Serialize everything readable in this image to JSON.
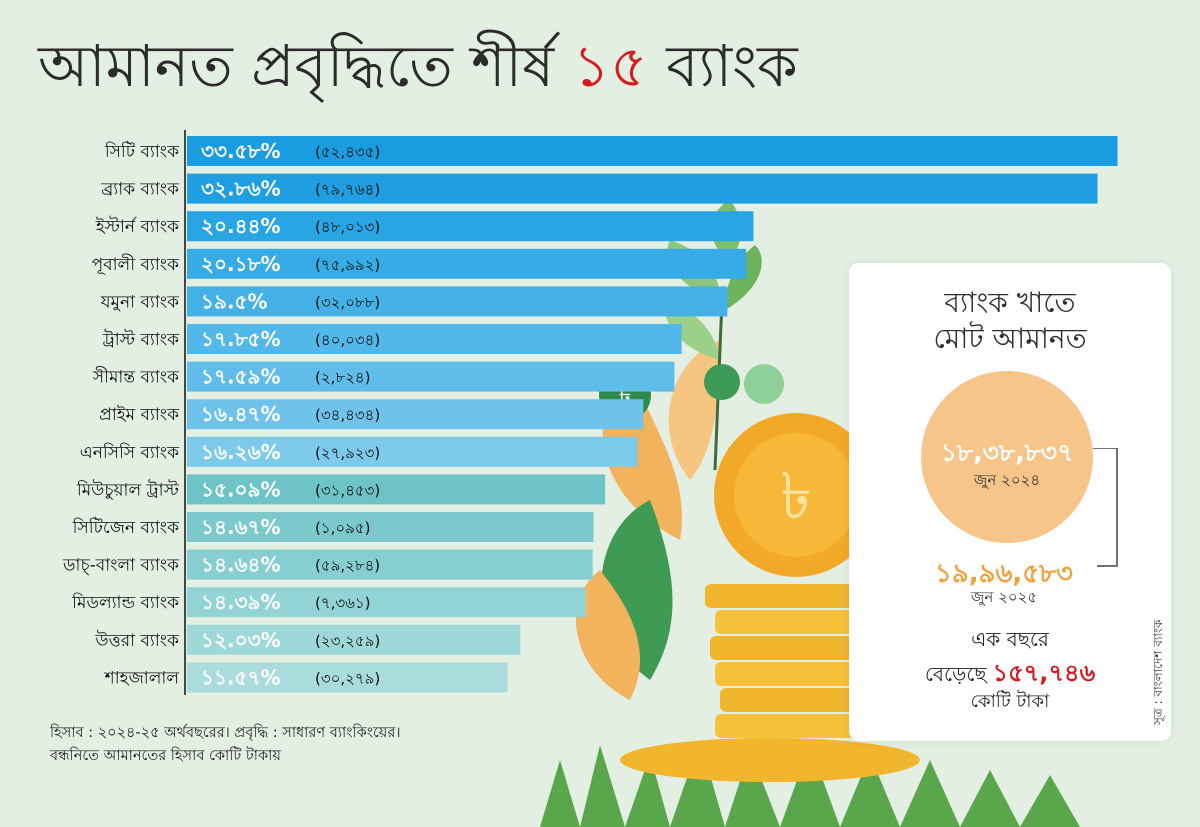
{
  "title": {
    "main": "আমানত প্রবৃদ্ধিতে শীর্ষ",
    "number": "১৫",
    "suffix": "ব্যাংক"
  },
  "chart_data": {
    "type": "bar",
    "orientation": "horizontal",
    "title": "আমানত প্রবৃদ্ধিতে শীর্ষ ১৫ ব্যাংক",
    "categories": [
      "সিটি ব্যাংক",
      "ব্র্যাক ব্যাংক",
      "ইস্টার্ন ব্যাংক",
      "পূবালী ব্যাংক",
      "যমুনা ব্যাংক",
      "ট্রাস্ট ব্যাংক",
      "সীমান্ত ব্যাংক",
      "প্রাইম ব্যাংক",
      "এনসিসি ব্যাংক",
      "মিউচুয়াল ট্রাস্ট",
      "সিটিজেন ব্যাংক",
      "ডাচ্-বাংলা ব্যাংক",
      "মিডল্যান্ড ব্যাংক",
      "উত্তরা ব্যাংক",
      "শাহজালাল"
    ],
    "values": [
      33.58,
      32.86,
      20.44,
      20.18,
      19.5,
      17.85,
      17.59,
      16.47,
      16.26,
      15.09,
      14.67,
      14.64,
      14.39,
      12.03,
      11.57
    ],
    "value_labels": [
      "৩৩.৫৮%",
      "৩২.৮৬%",
      "২০.৪৪%",
      "২০.১৮%",
      "১৯.৫%",
      "১৭.৮৫%",
      "১৭.৫৯%",
      "১৬.৪৭%",
      "১৬.২৬%",
      "১৫.০৯%",
      "১৪.৬৭%",
      "১৪.৬৪%",
      "১৪.৩৯%",
      "১২.০৩%",
      "১১.৫৭%"
    ],
    "deposits_crore": [
      52435,
      79764,
      48013,
      75992,
      32088,
      40034,
      2824,
      34434,
      27923,
      31453,
      1095,
      59284,
      7361,
      23259,
      30279
    ],
    "deposit_labels": [
      "(৫২,৪৩৫)",
      "(৭৯,৭৬৪)",
      "(৪৮,০১৩)",
      "(৭৫,৯৯২)",
      "(৩২,০৮৮)",
      "(৪০,০৩৪)",
      "(২,৮২৪)",
      "(৩৪,৪৩৪)",
      "(২৭,৯২৩)",
      "(৩১,৪৫৩)",
      "(১,০৯৫)",
      "(৫৯,২৮৪)",
      "(৭,৩৬১)",
      "(২৩,২৫৯)",
      "(৩০,২৭৯)"
    ],
    "bar_colors": [
      "#1a9ce0",
      "#1f9fe2",
      "#2aa5e4",
      "#36abe6",
      "#44b1e7",
      "#52b7e9",
      "#60bde9",
      "#6fc3ea",
      "#7ecaeb",
      "#6ec3c7",
      "#7bc9cc",
      "#86ced0",
      "#92d3d5",
      "#9ed8d9",
      "#abdcdd"
    ],
    "xlim": [
      0,
      34.5
    ]
  },
  "footnote": {
    "line1": "হিসাব : ২০২৪-২৫ অর্থবছরের। প্রবৃদ্ধি : সাধারণ ব্যাংকিংয়ের।",
    "line2": "বন্ধনিতে আমানতের হিসাব কোটি টাকায়"
  },
  "card": {
    "title_line1": "ব্যাংক খাতে",
    "title_line2": "মোট আমানত",
    "value_2024": "১৮,৩৮,৮৩৭",
    "date_2024": "জুন ২০২৪",
    "value_2025": "১৯,৯৬,৫৮৩",
    "date_2025": "জুন ২০২৫",
    "increase_prefix": "এক বছরে",
    "increase_verb": "বেড়েছে",
    "increase_value": "১৫৭,৭৪৬",
    "increase_unit": "কোটি টাকা"
  },
  "source": "সূত্র : বাংলাদেশ ব্যাংক",
  "colors": {
    "accent": "#d8191f",
    "circle": "#f7c48a",
    "value_2025": "#f0a23a",
    "background": "#e4efe3"
  }
}
